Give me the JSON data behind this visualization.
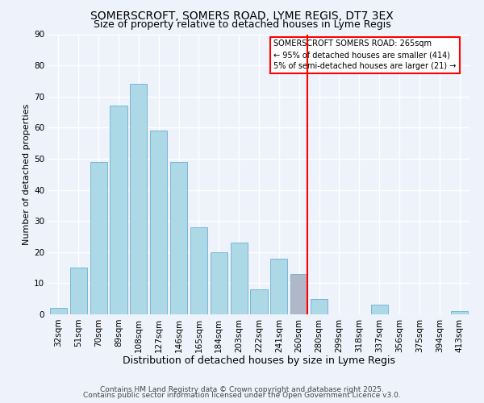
{
  "title1": "SOMERSCROFT, SOMERS ROAD, LYME REGIS, DT7 3EX",
  "title2": "Size of property relative to detached houses in Lyme Regis",
  "xlabel": "Distribution of detached houses by size in Lyme Regis",
  "ylabel": "Number of detached properties",
  "categories": [
    "32sqm",
    "51sqm",
    "70sqm",
    "89sqm",
    "108sqm",
    "127sqm",
    "146sqm",
    "165sqm",
    "184sqm",
    "203sqm",
    "222sqm",
    "241sqm",
    "260sqm",
    "280sqm",
    "299sqm",
    "318sqm",
    "337sqm",
    "356sqm",
    "375sqm",
    "394sqm",
    "413sqm"
  ],
  "values": [
    2,
    15,
    49,
    67,
    74,
    59,
    49,
    28,
    20,
    23,
    8,
    18,
    13,
    5,
    0,
    0,
    3,
    0,
    0,
    0,
    1
  ],
  "bar_color": "#add8e6",
  "bar_edge_color": "#6aaed6",
  "highlight_bar_index": 12,
  "highlight_bar_color": "#b0b8c8",
  "vline_color": "red",
  "ylim": [
    0,
    90
  ],
  "yticks": [
    0,
    10,
    20,
    30,
    40,
    50,
    60,
    70,
    80,
    90
  ],
  "legend_title": "SOMERSCROFT SOMERS ROAD: 265sqm",
  "legend_line1": "← 95% of detached houses are smaller (414)",
  "legend_line2": "5% of semi-detached houses are larger (21) →",
  "legend_box_color": "white",
  "legend_border_color": "red",
  "footnote1": "Contains HM Land Registry data © Crown copyright and database right 2025.",
  "footnote2": "Contains public sector information licensed under the Open Government Licence v3.0.",
  "background_color": "#eef2fb",
  "grid_color": "white",
  "title1_fontsize": 10,
  "title2_fontsize": 9,
  "xlabel_fontsize": 9,
  "ylabel_fontsize": 8,
  "tick_fontsize": 7.5,
  "footnote_fontsize": 6.5
}
